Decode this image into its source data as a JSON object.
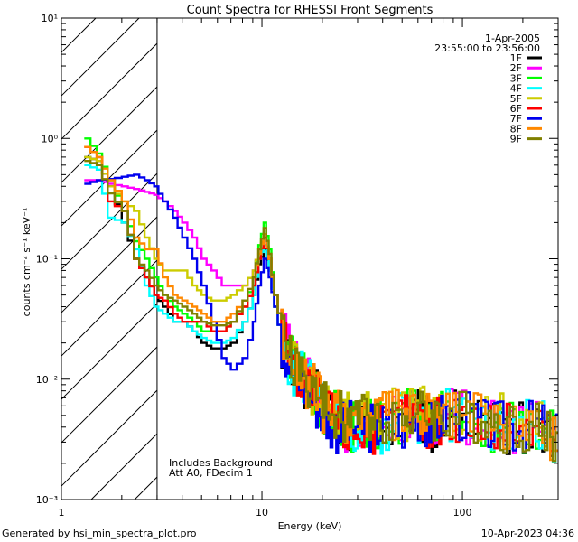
{
  "footer": {
    "generated_by": "Generated by hsi_min_spectra_plot.pro",
    "timestamp": "10-Apr-2023 04:36"
  },
  "chart_data": {
    "type": "line",
    "title": "Count Spectra for RHESSI Front Segments",
    "xlabel": "Energy (keV)",
    "ylabel": "counts cm⁻² s⁻¹ keV⁻¹",
    "xscale": "log",
    "yscale": "log",
    "xlim": [
      1,
      300
    ],
    "ylim": [
      0.001,
      10
    ],
    "x_ticks": [
      {
        "value": 1,
        "label": "1"
      },
      {
        "value": 10,
        "label": "10"
      },
      {
        "value": 100,
        "label": "100"
      }
    ],
    "y_ticks": [
      {
        "value": 0.001,
        "label": "10⁻³"
      },
      {
        "value": 0.01,
        "label": "10⁻²"
      },
      {
        "value": 0.1,
        "label": "10⁻¹"
      },
      {
        "value": 1,
        "label": "10⁰"
      },
      {
        "value": 10,
        "label": "10¹"
      }
    ],
    "hatched_region": {
      "x_min": 1,
      "x_max": 3
    },
    "legend": {
      "position": "top-right",
      "date": "1-Apr-2005",
      "time_range": "23:55:00 to 23:56:00"
    },
    "annotations": [
      "Includes Background",
      "Att A0, FDecim 1"
    ],
    "series": [
      {
        "name": "1F",
        "color": "#000000",
        "x": [
          1.3,
          1.5,
          1.7,
          2.0,
          2.3,
          2.6,
          2.9,
          3.2,
          3.6,
          4.0,
          4.5,
          5.0,
          5.6,
          6.3,
          7.0,
          8.0,
          9.0,
          9.6,
          10.2,
          10.8,
          11.5,
          12.5,
          14,
          16,
          18,
          20,
          23,
          26,
          30,
          35,
          40,
          50,
          60,
          70,
          80,
          100,
          130,
          160,
          200,
          250,
          300
        ],
        "y": [
          0.7,
          0.65,
          0.4,
          0.2,
          0.1,
          0.07,
          0.05,
          0.04,
          0.03,
          0.03,
          0.025,
          0.02,
          0.018,
          0.018,
          0.02,
          0.03,
          0.05,
          0.09,
          0.12,
          0.08,
          0.04,
          0.02,
          0.012,
          0.01,
          0.008,
          0.006,
          0.005,
          0.004,
          0.004,
          0.004,
          0.004,
          0.005,
          0.005,
          0.004,
          0.005,
          0.005,
          0.004,
          0.004,
          0.004,
          0.004,
          0.003
        ]
      },
      {
        "name": "2F",
        "color": "#ff00ff",
        "x": [
          1.3,
          1.5,
          1.7,
          2.0,
          2.3,
          2.6,
          2.9,
          3.2,
          3.6,
          4.0,
          4.5,
          5.0,
          5.6,
          6.3,
          7.0,
          8.0,
          9.0,
          9.6,
          10.2,
          10.8,
          11.5,
          12.5,
          14,
          16,
          18,
          20,
          23,
          26,
          30,
          35,
          40,
          50,
          60,
          70,
          80,
          100,
          130,
          160,
          200,
          250,
          300
        ],
        "y": [
          0.45,
          0.45,
          0.42,
          0.4,
          0.38,
          0.36,
          0.34,
          0.3,
          0.25,
          0.2,
          0.15,
          0.1,
          0.08,
          0.06,
          0.06,
          0.06,
          0.08,
          0.12,
          0.15,
          0.1,
          0.05,
          0.025,
          0.015,
          0.01,
          0.008,
          0.006,
          0.005,
          0.004,
          0.004,
          0.004,
          0.004,
          0.005,
          0.005,
          0.004,
          0.005,
          0.005,
          0.004,
          0.004,
          0.004,
          0.004,
          0.003
        ]
      },
      {
        "name": "3F",
        "color": "#00ff00",
        "x": [
          1.3,
          1.5,
          1.7,
          2.0,
          2.3,
          2.6,
          2.9,
          3.2,
          3.6,
          4.0,
          4.5,
          5.0,
          5.6,
          6.3,
          7.0,
          8.0,
          9.0,
          9.6,
          10.2,
          10.8,
          11.5,
          12.5,
          14,
          16,
          18,
          20,
          23,
          26,
          30,
          35,
          40,
          50,
          60,
          70,
          80,
          100,
          130,
          160,
          200,
          250,
          300
        ],
        "y": [
          1.0,
          0.75,
          0.45,
          0.25,
          0.14,
          0.1,
          0.07,
          0.05,
          0.04,
          0.035,
          0.03,
          0.025,
          0.025,
          0.025,
          0.03,
          0.04,
          0.07,
          0.13,
          0.2,
          0.12,
          0.05,
          0.025,
          0.014,
          0.01,
          0.008,
          0.006,
          0.005,
          0.004,
          0.004,
          0.004,
          0.004,
          0.005,
          0.005,
          0.004,
          0.005,
          0.005,
          0.004,
          0.004,
          0.004,
          0.004,
          0.003
        ]
      },
      {
        "name": "4F",
        "color": "#00ffff",
        "x": [
          1.3,
          1.5,
          1.7,
          2.0,
          2.3,
          2.6,
          2.9,
          3.2,
          3.6,
          4.0,
          4.5,
          5.0,
          5.6,
          6.3,
          7.0,
          8.0,
          9.0,
          9.6,
          10.2,
          10.8,
          11.5,
          12.5,
          14,
          16,
          18,
          20,
          23,
          26,
          30,
          35,
          40,
          50,
          60,
          70,
          80,
          100,
          130,
          160,
          200,
          250,
          300
        ],
        "y": [
          0.6,
          0.55,
          0.22,
          0.2,
          0.12,
          0.06,
          0.04,
          0.035,
          0.03,
          0.03,
          0.025,
          0.022,
          0.02,
          0.02,
          0.022,
          0.03,
          0.05,
          0.1,
          0.13,
          0.08,
          0.04,
          0.02,
          0.012,
          0.01,
          0.008,
          0.006,
          0.005,
          0.004,
          0.004,
          0.004,
          0.004,
          0.005,
          0.005,
          0.004,
          0.005,
          0.005,
          0.004,
          0.004,
          0.004,
          0.004,
          0.003
        ]
      },
      {
        "name": "5F",
        "color": "#cccc00",
        "x": [
          1.3,
          1.5,
          1.7,
          2.0,
          2.3,
          2.6,
          2.9,
          3.2,
          3.6,
          4.0,
          4.5,
          5.0,
          5.6,
          6.3,
          7.0,
          8.0,
          9.0,
          9.6,
          10.2,
          10.8,
          11.5,
          12.5,
          14,
          16,
          18,
          20,
          23,
          26,
          30,
          35,
          40,
          50,
          60,
          70,
          80,
          100,
          130,
          160,
          200,
          250,
          300
        ],
        "y": [
          0.7,
          0.65,
          0.4,
          0.3,
          0.25,
          0.15,
          0.1,
          0.08,
          0.08,
          0.08,
          0.06,
          0.05,
          0.045,
          0.045,
          0.05,
          0.06,
          0.08,
          0.12,
          0.16,
          0.1,
          0.05,
          0.025,
          0.015,
          0.01,
          0.008,
          0.006,
          0.005,
          0.005,
          0.005,
          0.005,
          0.005,
          0.005,
          0.006,
          0.005,
          0.005,
          0.005,
          0.005,
          0.005,
          0.004,
          0.004,
          0.003
        ]
      },
      {
        "name": "6F",
        "color": "#ff0000",
        "x": [
          1.3,
          1.5,
          1.7,
          2.0,
          2.3,
          2.6,
          2.9,
          3.2,
          3.6,
          4.0,
          4.5,
          5.0,
          5.6,
          6.3,
          7.0,
          8.0,
          9.0,
          9.6,
          10.2,
          10.8,
          11.5,
          12.5,
          14,
          16,
          18,
          20,
          23,
          26,
          30,
          35,
          40,
          50,
          60,
          70,
          80,
          100,
          130,
          160,
          200,
          250,
          300
        ],
        "y": [
          0.85,
          0.7,
          0.3,
          0.25,
          0.1,
          0.07,
          0.05,
          0.045,
          0.035,
          0.03,
          0.03,
          0.03,
          0.025,
          0.025,
          0.03,
          0.04,
          0.06,
          0.1,
          0.15,
          0.1,
          0.05,
          0.025,
          0.014,
          0.01,
          0.008,
          0.006,
          0.005,
          0.004,
          0.004,
          0.004,
          0.004,
          0.005,
          0.005,
          0.004,
          0.005,
          0.005,
          0.004,
          0.004,
          0.004,
          0.004,
          0.003
        ]
      },
      {
        "name": "7F",
        "color": "#0000ee",
        "x": [
          1.3,
          1.5,
          1.7,
          2.0,
          2.3,
          2.6,
          2.9,
          3.2,
          3.6,
          4.0,
          4.5,
          5.0,
          5.6,
          6.3,
          7.0,
          8.0,
          9.0,
          9.6,
          10.2,
          10.8,
          11.5,
          12.5,
          14,
          16,
          18,
          20,
          23,
          26,
          30,
          35,
          40,
          50,
          60,
          70,
          80,
          100,
          130,
          160,
          200,
          250,
          300
        ],
        "y": [
          0.42,
          0.45,
          0.46,
          0.48,
          0.5,
          0.45,
          0.4,
          0.3,
          0.22,
          0.15,
          0.1,
          0.06,
          0.03,
          0.015,
          0.012,
          0.015,
          0.03,
          0.06,
          0.1,
          0.07,
          0.04,
          0.02,
          0.012,
          0.009,
          0.007,
          0.005,
          0.004,
          0.004,
          0.004,
          0.004,
          0.004,
          0.004,
          0.005,
          0.004,
          0.005,
          0.005,
          0.004,
          0.004,
          0.004,
          0.004,
          0.003
        ]
      },
      {
        "name": "8F",
        "color": "#ff8800",
        "x": [
          1.3,
          1.5,
          1.7,
          2.0,
          2.3,
          2.6,
          2.9,
          3.2,
          3.6,
          4.0,
          4.5,
          5.0,
          5.6,
          6.3,
          7.0,
          8.0,
          9.0,
          9.6,
          10.2,
          10.8,
          11.5,
          12.5,
          14,
          16,
          18,
          20,
          23,
          26,
          30,
          35,
          40,
          50,
          60,
          70,
          80,
          100,
          130,
          160,
          200,
          250,
          300
        ],
        "y": [
          0.85,
          0.7,
          0.45,
          0.3,
          0.15,
          0.12,
          0.12,
          0.07,
          0.05,
          0.045,
          0.04,
          0.035,
          0.03,
          0.03,
          0.035,
          0.045,
          0.07,
          0.11,
          0.16,
          0.1,
          0.05,
          0.025,
          0.015,
          0.01,
          0.008,
          0.006,
          0.005,
          0.005,
          0.005,
          0.005,
          0.005,
          0.005,
          0.005,
          0.005,
          0.005,
          0.005,
          0.005,
          0.004,
          0.004,
          0.004,
          0.003
        ]
      },
      {
        "name": "9F",
        "color": "#808000",
        "x": [
          1.3,
          1.5,
          1.7,
          2.0,
          2.3,
          2.6,
          2.9,
          3.2,
          3.6,
          4.0,
          4.5,
          5.0,
          5.6,
          6.3,
          7.0,
          8.0,
          9.0,
          9.6,
          10.2,
          10.8,
          11.5,
          12.5,
          14,
          16,
          18,
          20,
          23,
          26,
          30,
          35,
          40,
          50,
          60,
          70,
          80,
          100,
          130,
          160,
          200,
          250,
          300
        ],
        "y": [
          0.65,
          0.6,
          0.35,
          0.25,
          0.1,
          0.08,
          0.06,
          0.05,
          0.045,
          0.04,
          0.035,
          0.03,
          0.028,
          0.028,
          0.03,
          0.045,
          0.07,
          0.12,
          0.18,
          0.11,
          0.05,
          0.025,
          0.015,
          0.01,
          0.008,
          0.006,
          0.005,
          0.005,
          0.005,
          0.005,
          0.005,
          0.005,
          0.005,
          0.005,
          0.005,
          0.005,
          0.005,
          0.004,
          0.004,
          0.004,
          0.003
        ]
      }
    ]
  }
}
